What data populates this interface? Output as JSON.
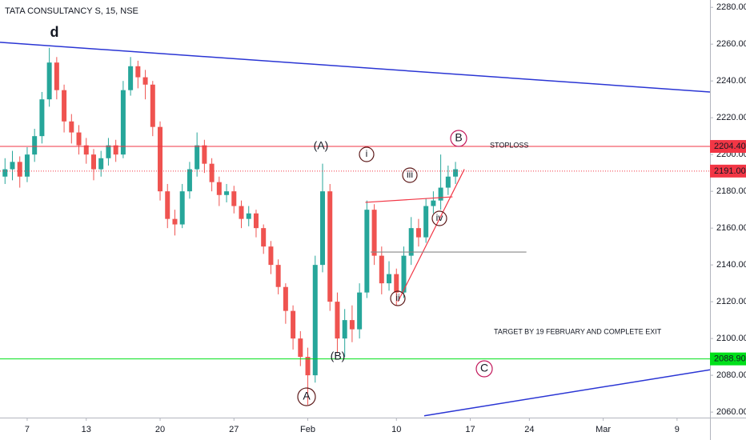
{
  "chart_data": {
    "type": "candlestick",
    "title": "TATA CONSULTANCY S, 15, NSE",
    "xlim": [
      -1.84,
      46.23
    ],
    "ylim": [
      2057,
      2284
    ],
    "xticks": [
      {
        "value": 0,
        "label": "7"
      },
      {
        "value": 4,
        "label": "13"
      },
      {
        "value": 9,
        "label": "20"
      },
      {
        "value": 14,
        "label": "27"
      },
      {
        "value": 19,
        "label": "Feb"
      },
      {
        "value": 25,
        "label": "10"
      },
      {
        "value": 30,
        "label": "17"
      },
      {
        "value": 34,
        "label": "24"
      },
      {
        "value": 39,
        "label": "Mar"
      },
      {
        "value": 44,
        "label": "9"
      }
    ],
    "yticks": [
      {
        "value": 2060,
        "label": "2060.00"
      },
      {
        "value": 2080,
        "label": "2080.00"
      },
      {
        "value": 2100,
        "label": "2100.00"
      },
      {
        "value": 2120,
        "label": "2120.00"
      },
      {
        "value": 2140,
        "label": "2140.00"
      },
      {
        "value": 2160,
        "label": "2160.00"
      },
      {
        "value": 2180,
        "label": "2180.00"
      },
      {
        "value": 2200,
        "label": "2200.00"
      },
      {
        "value": 2220,
        "label": "2220.00"
      },
      {
        "value": 2240,
        "label": "2240.00"
      },
      {
        "value": 2260,
        "label": "2260.00"
      },
      {
        "value": 2280,
        "label": "2280.00"
      }
    ],
    "up_color": "#26a69a",
    "down_color": "#ef5350",
    "x": [
      -1.5,
      -1,
      -0.5,
      0,
      0.5,
      1,
      1.5,
      2,
      2.5,
      3,
      3.5,
      4,
      4.5,
      5,
      5.5,
      6,
      6.5,
      7,
      7.5,
      8,
      8.5,
      9,
      9.5,
      10,
      10.5,
      11,
      11.5,
      12,
      12.5,
      13,
      13.5,
      14,
      14.5,
      15,
      15.5,
      16,
      16.5,
      17,
      17.5,
      18,
      18.5,
      19,
      19.5,
      20,
      20.5,
      21,
      21.5,
      22,
      22.5,
      23,
      23.5,
      24,
      24.5,
      25,
      25.5,
      26,
      26.5,
      27,
      27.5,
      28,
      28.5,
      29
    ],
    "open": [
      2188,
      2192,
      2196,
      2188,
      2200,
      2210,
      2230,
      2250,
      2235,
      2218,
      2212,
      2205,
      2200,
      2192,
      2198,
      2205,
      2200,
      2235,
      2248,
      2242,
      2238,
      2215,
      2180,
      2165,
      2162,
      2180,
      2192,
      2205,
      2195,
      2185,
      2178,
      2180,
      2172,
      2165,
      2168,
      2160,
      2150,
      2140,
      2128,
      2115,
      2100,
      2090,
      2080,
      2140,
      2180,
      2120,
      2100,
      2110,
      2105,
      2125,
      2170,
      2145,
      2130,
      2135,
      2125,
      2145,
      2160,
      2155,
      2172,
      2175,
      2182,
      2188
    ],
    "high": [
      2198,
      2202,
      2199,
      2204,
      2214,
      2234,
      2258,
      2253,
      2238,
      2222,
      2216,
      2209,
      2203,
      2202,
      2209,
      2208,
      2240,
      2253,
      2251,
      2246,
      2240,
      2218,
      2184,
      2170,
      2184,
      2196,
      2212,
      2208,
      2198,
      2188,
      2184,
      2183,
      2175,
      2172,
      2170,
      2162,
      2153,
      2143,
      2130,
      2118,
      2104,
      2095,
      2145,
      2195,
      2184,
      2125,
      2116,
      2118,
      2130,
      2175,
      2173,
      2150,
      2142,
      2138,
      2150,
      2166,
      2165,
      2176,
      2180,
      2200,
      2194,
      2196
    ],
    "low": [
      2184,
      2186,
      2182,
      2185,
      2196,
      2206,
      2226,
      2230,
      2212,
      2206,
      2200,
      2195,
      2186,
      2188,
      2194,
      2196,
      2198,
      2232,
      2236,
      2230,
      2210,
      2175,
      2160,
      2156,
      2160,
      2176,
      2188,
      2190,
      2180,
      2172,
      2174,
      2168,
      2160,
      2161,
      2155,
      2146,
      2135,
      2124,
      2108,
      2094,
      2085,
      2064,
      2076,
      2136,
      2115,
      2092,
      2090,
      2098,
      2100,
      2122,
      2140,
      2124,
      2126,
      2118,
      2122,
      2140,
      2150,
      2152,
      2168,
      2170,
      2178,
      2184
    ],
    "close": [
      2192,
      2196,
      2188,
      2200,
      2210,
      2230,
      2250,
      2235,
      2218,
      2212,
      2205,
      2200,
      2192,
      2198,
      2205,
      2200,
      2235,
      2248,
      2242,
      2238,
      2215,
      2180,
      2165,
      2162,
      2180,
      2192,
      2205,
      2195,
      2185,
      2178,
      2180,
      2172,
      2165,
      2168,
      2160,
      2150,
      2140,
      2128,
      2115,
      2100,
      2090,
      2080,
      2140,
      2180,
      2120,
      2100,
      2110,
      2105,
      2125,
      2170,
      2145,
      2130,
      2135,
      2125,
      2145,
      2160,
      2155,
      2172,
      2175,
      2182,
      2188,
      2192
    ],
    "levels": [
      {
        "value": 2204.4,
        "label": "2204.40",
        "color": "#f23645",
        "style": "solid"
      },
      {
        "value": 2191,
        "label": "2191.00",
        "color": "#f23645",
        "style": "dotted"
      },
      {
        "value": 2088.9,
        "label": "2088.90",
        "color": "#00e01a",
        "style": "solid"
      }
    ],
    "trendlines": [
      {
        "color": "#2a35d4",
        "x": [
          -1.84,
          46.23
        ],
        "y": [
          2261,
          2234
        ]
      },
      {
        "color": "#2a35d4",
        "x": [
          26.88,
          46.23
        ],
        "y": [
          2058,
          2083
        ]
      },
      {
        "color": "#f23645",
        "x": [
          22.9,
          28.8
        ],
        "y": [
          2174,
          2177
        ]
      },
      {
        "color": "#f23645",
        "x": [
          25.1,
          29.6
        ],
        "y": [
          2120,
          2192
        ]
      },
      {
        "color": "#888888",
        "x": [
          23.25,
          33.8
        ],
        "y": [
          2147,
          2147
        ]
      }
    ],
    "annotations": [
      {
        "text": "d",
        "color": "#22a7a0"
      },
      {
        "text": "(A)",
        "color": "#5d1a1a"
      },
      {
        "text": "(B)",
        "color": "#5d1a1a"
      },
      {
        "text": "A",
        "color": "#5d1a1a"
      },
      {
        "text": "i",
        "color": "#5d1a1a"
      },
      {
        "text": "ii",
        "color": "#5d1a1a"
      },
      {
        "text": "iii",
        "color": "#5d1a1a"
      },
      {
        "text": "iv",
        "color": "#5d1a1a"
      },
      {
        "text": "B",
        "color": "#c2185b"
      },
      {
        "text": "C",
        "color": "#c2185b"
      },
      {
        "text": "STOPLOSS",
        "color": "#131722"
      },
      {
        "text": "TARGET BY 19 FEBRUARY AND COMPLETE EXIT",
        "color": "#131722"
      }
    ]
  }
}
